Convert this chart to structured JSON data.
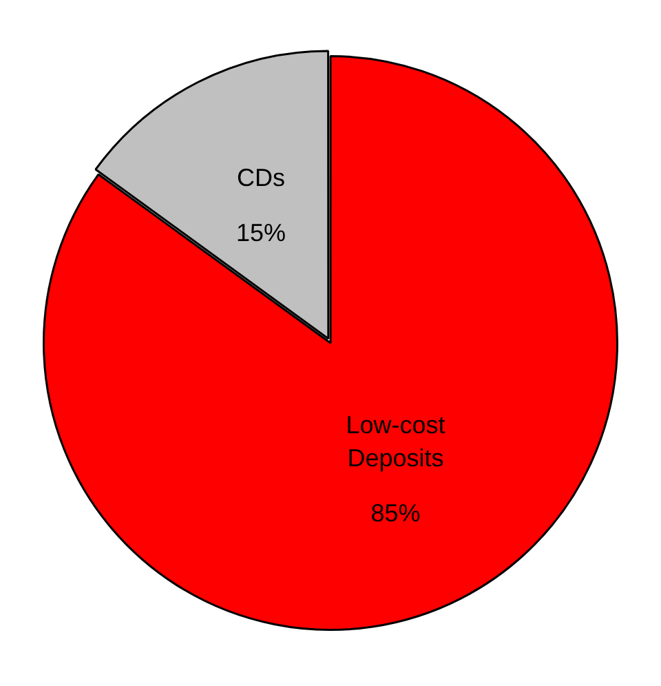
{
  "chart_data": {
    "type": "pie",
    "categories": [
      "Low-cost Deposits",
      "CDs"
    ],
    "values": [
      85,
      15
    ],
    "colors": [
      "#ff0000",
      "#c0c0c0"
    ],
    "value_labels": [
      "85%",
      "15%"
    ],
    "legend": false
  }
}
